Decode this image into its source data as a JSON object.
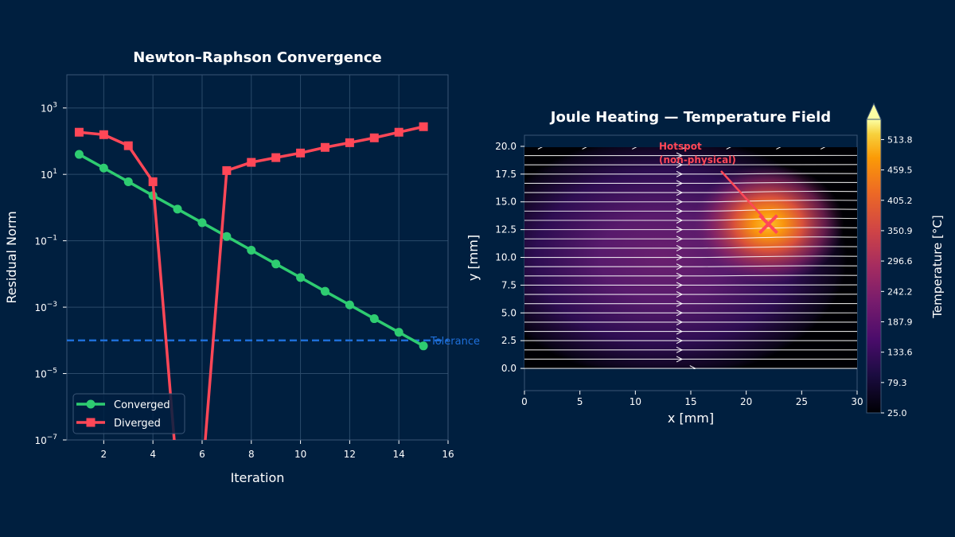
{
  "colors": {
    "background": "#001f3f",
    "converged": "#2ecc71",
    "diverged": "#ff4757",
    "tolerance": "#1e6fd9",
    "grid": "#2a4a6a",
    "text": "#ffffff"
  },
  "chart_data": [
    {
      "type": "line",
      "title": "Newton–Raphson Convergence",
      "xlabel": "Iteration",
      "ylabel": "Residual Norm",
      "yscale": "log",
      "xlim": [
        0.5,
        16
      ],
      "ylim": [
        1e-07,
        10000.0
      ],
      "grid": true,
      "legend_position": "bottom-left",
      "xticks": [
        2,
        4,
        6,
        8,
        10,
        12,
        14,
        16
      ],
      "yticks": [
        {
          "value": 1000.0,
          "label": "10",
          "exp": "3"
        },
        {
          "value": 10.0,
          "label": "10",
          "exp": "1"
        },
        {
          "value": 0.1,
          "label": "10",
          "exp": "−1"
        },
        {
          "value": 0.001,
          "label": "10",
          "exp": "−3"
        },
        {
          "value": 1e-05,
          "label": "10",
          "exp": "−5"
        },
        {
          "value": 1e-07,
          "label": "10",
          "exp": "−7"
        }
      ],
      "x": [
        1,
        2,
        3,
        4,
        5,
        6,
        7,
        8,
        9,
        10,
        11,
        12,
        13,
        14,
        15
      ],
      "series": [
        {
          "name": "Converged",
          "marker": "circle",
          "values": [
            40,
            15.5,
            6.0,
            2.3,
            0.9,
            0.35,
            0.135,
            0.052,
            0.02,
            0.0078,
            0.003,
            0.00117,
            0.00045,
            0.000175,
            6.8e-05
          ]
        },
        {
          "name": "Diverged",
          "marker": "square",
          "values": [
            186,
            157,
            73,
            6.0,
            0,
            0,
            13,
            23,
            32,
            44,
            65,
            90,
            126,
            186,
            273
          ]
        }
      ],
      "reference_line": {
        "value": 0.0001,
        "label": "Tolerance",
        "style": "dashed"
      }
    },
    {
      "type": "heatmap",
      "title": "Joule Heating — Temperature Field",
      "xlabel": "x [mm]",
      "ylabel": "y [mm]",
      "xlim": [
        0,
        30
      ],
      "ylim": [
        -2,
        21
      ],
      "xticks": [
        "0",
        "5",
        "10",
        "15",
        "20",
        "25",
        "30"
      ],
      "yticks": [
        "0.0",
        "2.5",
        "5.0",
        "7.5",
        "10.0",
        "12.5",
        "15.0",
        "17.5",
        "20.0"
      ],
      "colormap": "inferno",
      "colorbar": {
        "label": "Temperature [°C]",
        "min": 25.0,
        "max": 550,
        "extend": "max",
        "ticks": [
          "25.0",
          "79.3",
          "133.6",
          "187.9",
          "242.2",
          "296.6",
          "350.9",
          "405.2",
          "459.5",
          "513.8"
        ]
      },
      "hotspot": {
        "x": 22,
        "y": 13,
        "label_line1": "Hotspot",
        "label_line2": "(non-physical)",
        "marker": "x"
      },
      "streamlines": "horizontal, left to right"
    }
  ]
}
